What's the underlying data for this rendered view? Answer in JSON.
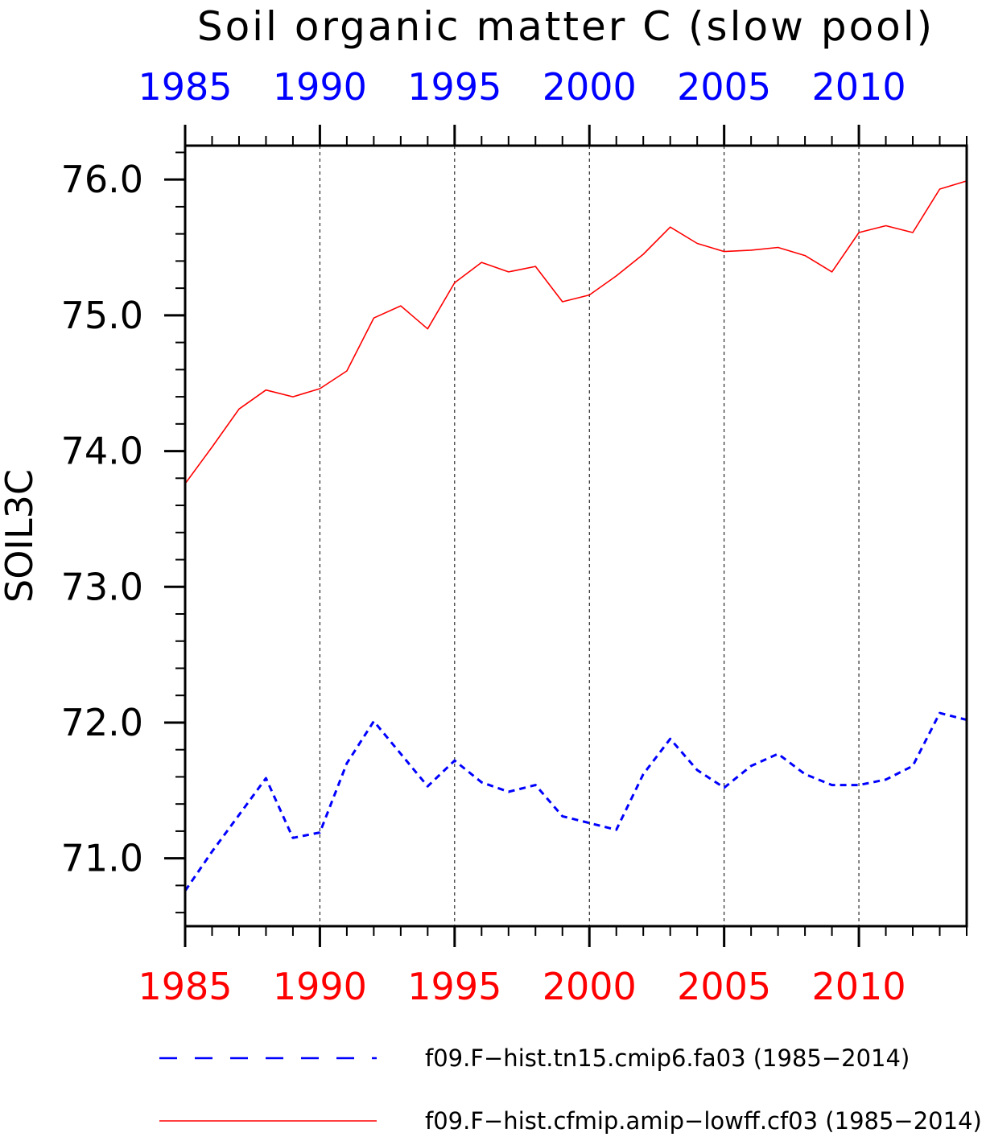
{
  "chart_data": {
    "type": "line",
    "title": "Soil organic matter C (slow pool)",
    "ylabel": "SOIL3C",
    "xlabel": "",
    "xlim": [
      1985,
      2014
    ],
    "ylim": [
      70.5,
      76.25
    ],
    "y_ticks": [
      "71.0",
      "72.0",
      "73.0",
      "74.0",
      "75.0",
      "76.0"
    ],
    "y_tick_values": [
      71.0,
      72.0,
      73.0,
      74.0,
      75.0,
      76.0
    ],
    "x_ticks_top": [
      "1985",
      "1990",
      "1995",
      "2000",
      "2005",
      "2010"
    ],
    "x_ticks_bottom": [
      "1985",
      "1990",
      "1995",
      "2000",
      "2005",
      "2010"
    ],
    "x_tick_values": [
      1985,
      1990,
      1995,
      2000,
      2005,
      2010
    ],
    "grid": "vertical dashed at major x ticks",
    "top_axis_color": "#0000ff",
    "bottom_axis_color": "#ff0000",
    "x": [
      1985,
      1986,
      1987,
      1988,
      1989,
      1990,
      1991,
      1992,
      1993,
      1994,
      1995,
      1996,
      1997,
      1998,
      1999,
      2000,
      2001,
      2002,
      2003,
      2004,
      2005,
      2006,
      2007,
      2008,
      2009,
      2010,
      2011,
      2012,
      2013,
      2014
    ],
    "series": [
      {
        "name": "f09.F−hist.cfmip.amip−lowff.cf03 (1985−2014)",
        "color": "#ff0000",
        "style": "solid",
        "values": [
          73.76,
          74.03,
          74.31,
          74.45,
          74.4,
          74.46,
          74.59,
          74.98,
          75.07,
          74.9,
          75.24,
          75.39,
          75.32,
          75.36,
          75.1,
          75.15,
          75.29,
          75.45,
          75.65,
          75.53,
          75.47,
          75.48,
          75.5,
          75.44,
          75.32,
          75.61,
          75.66,
          75.61,
          75.93,
          75.99
        ]
      },
      {
        "name": "f09.F−hist.tn15.cmip6.fa03 (1985−2014)",
        "color": "#0000ff",
        "style": "dashed",
        "values": [
          70.76,
          71.05,
          71.32,
          71.59,
          71.15,
          71.19,
          71.7,
          72.01,
          71.77,
          71.53,
          71.72,
          71.56,
          71.49,
          71.54,
          71.31,
          71.26,
          71.21,
          71.62,
          71.88,
          71.65,
          71.52,
          71.68,
          71.77,
          71.62,
          71.54,
          71.54,
          71.58,
          71.68,
          72.07,
          72.02
        ]
      }
    ],
    "legend": [
      {
        "label": "f09.F−hist.tn15.cmip6.fa03 (1985−2014)",
        "color": "#0000ff",
        "style": "dashed"
      },
      {
        "label": "f09.F−hist.cfmip.amip−lowff.cf03 (1985−2014)",
        "color": "#ff0000",
        "style": "solid"
      }
    ]
  }
}
